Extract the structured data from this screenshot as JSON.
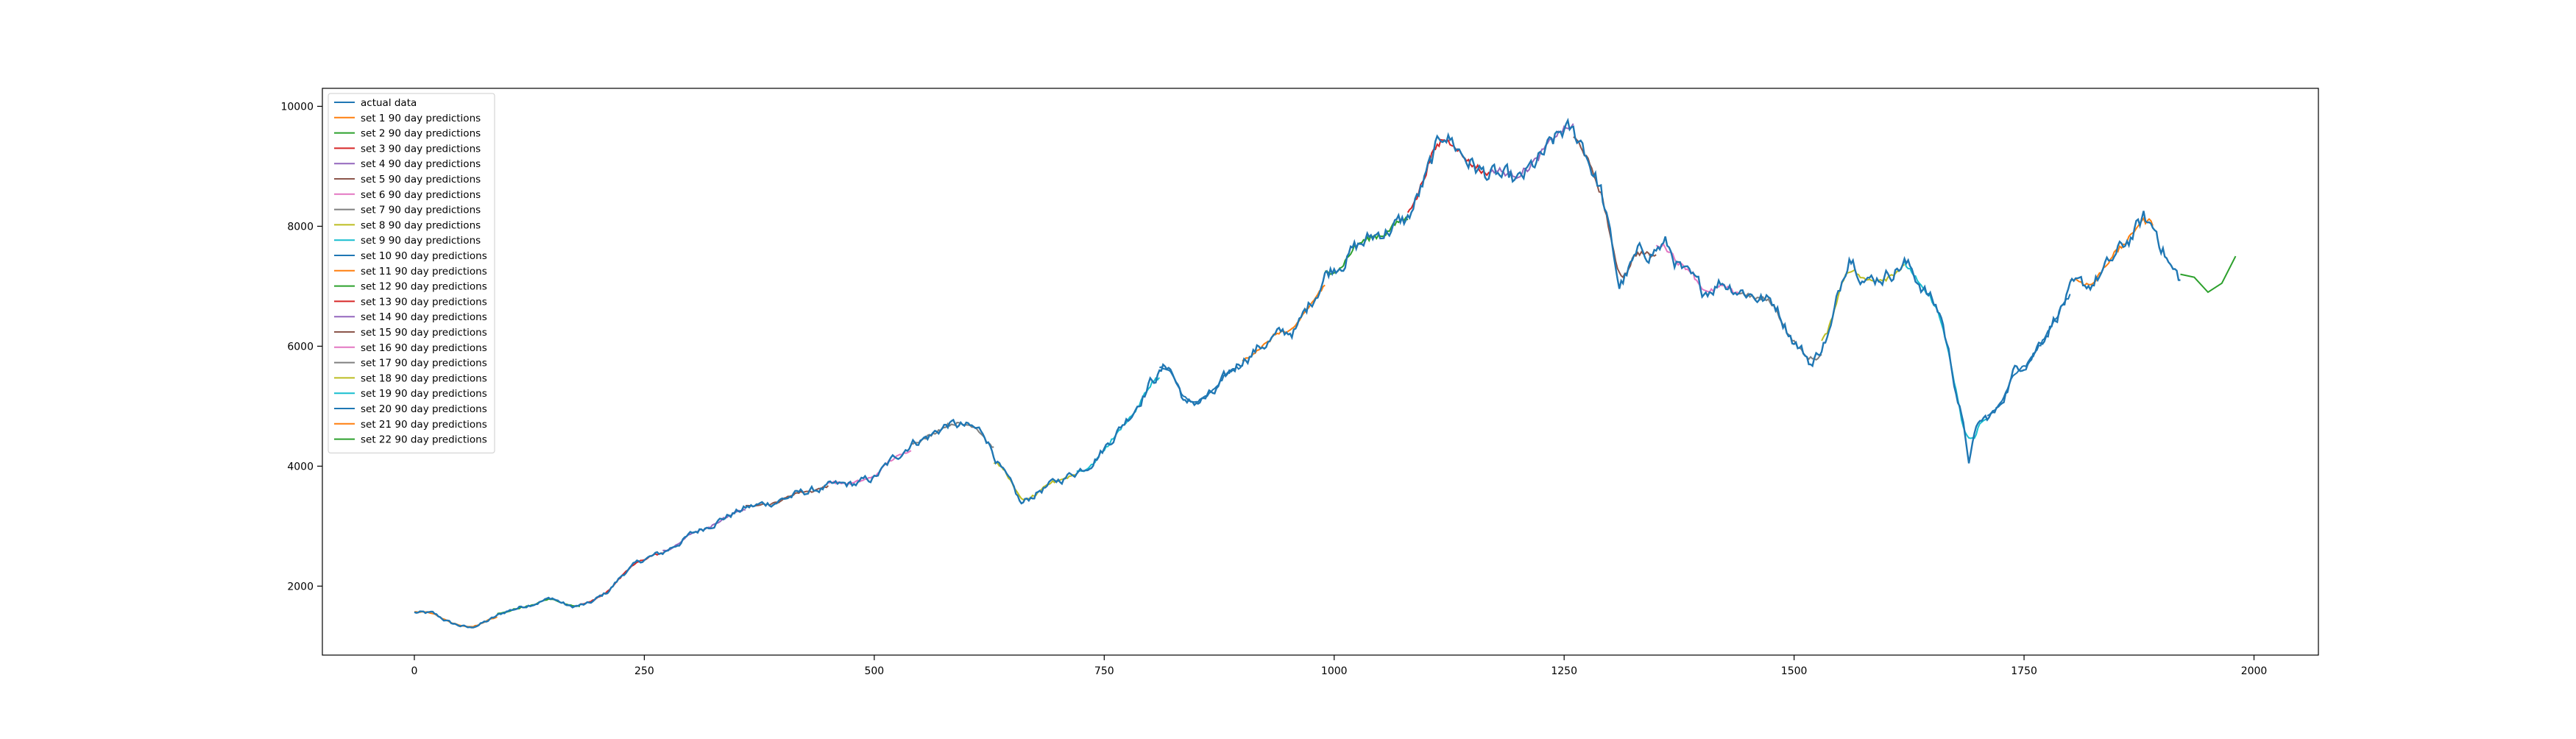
{
  "chart_data": {
    "type": "line",
    "title": "",
    "xlabel": "",
    "ylabel": "",
    "xlim": [
      -100,
      2070
    ],
    "ylim": [
      850,
      10300
    ],
    "xticks": [
      0,
      250,
      500,
      750,
      1000,
      1250,
      1500,
      1750,
      2000
    ],
    "yticks": [
      2000,
      4000,
      6000,
      8000,
      10000
    ],
    "grid": false,
    "legend_position": "upper-left",
    "actual": {
      "name": "actual data",
      "color": "#1f77b4",
      "keypoints": [
        [
          0,
          1560
        ],
        [
          20,
          1540
        ],
        [
          40,
          1380
        ],
        [
          60,
          1300
        ],
        [
          80,
          1420
        ],
        [
          100,
          1580
        ],
        [
          130,
          1720
        ],
        [
          150,
          1800
        ],
        [
          170,
          1650
        ],
        [
          190,
          1700
        ],
        [
          210,
          1900
        ],
        [
          230,
          2250
        ],
        [
          250,
          2450
        ],
        [
          270,
          2550
        ],
        [
          300,
          2850
        ],
        [
          330,
          3100
        ],
        [
          360,
          3300
        ],
        [
          390,
          3400
        ],
        [
          420,
          3550
        ],
        [
          450,
          3650
        ],
        [
          480,
          3700
        ],
        [
          500,
          3800
        ],
        [
          520,
          4100
        ],
        [
          540,
          4400
        ],
        [
          560,
          4500
        ],
        [
          580,
          4700
        ],
        [
          600,
          4650
        ],
        [
          620,
          4550
        ],
        [
          640,
          3900
        ],
        [
          660,
          3350
        ],
        [
          680,
          3600
        ],
        [
          700,
          3750
        ],
        [
          730,
          4000
        ],
        [
          750,
          4300
        ],
        [
          780,
          4900
        ],
        [
          800,
          5400
        ],
        [
          820,
          5700
        ],
        [
          840,
          5000
        ],
        [
          870,
          5200
        ],
        [
          900,
          5800
        ],
        [
          930,
          6100
        ],
        [
          960,
          6300
        ],
        [
          990,
          7200
        ],
        [
          1020,
          7600
        ],
        [
          1050,
          7900
        ],
        [
          1080,
          8100
        ],
        [
          1100,
          8800
        ],
        [
          1120,
          9600
        ],
        [
          1140,
          9200
        ],
        [
          1160,
          8900
        ],
        [
          1180,
          8800
        ],
        [
          1200,
          8700
        ],
        [
          1230,
          9200
        ],
        [
          1250,
          9600
        ],
        [
          1270,
          9400
        ],
        [
          1290,
          8600
        ],
        [
          1310,
          7000
        ],
        [
          1330,
          7500
        ],
        [
          1360,
          7700
        ],
        [
          1380,
          7200
        ],
        [
          1400,
          6900
        ],
        [
          1420,
          7100
        ],
        [
          1450,
          6900
        ],
        [
          1480,
          6700
        ],
        [
          1500,
          6100
        ],
        [
          1520,
          5700
        ],
        [
          1540,
          6300
        ],
        [
          1560,
          7600
        ],
        [
          1580,
          7100
        ],
        [
          1600,
          7200
        ],
        [
          1620,
          7400
        ],
        [
          1640,
          7000
        ],
        [
          1660,
          6500
        ],
        [
          1680,
          5000
        ],
        [
          1690,
          4100
        ],
        [
          1700,
          4700
        ],
        [
          1720,
          4900
        ],
        [
          1740,
          5600
        ],
        [
          1760,
          5900
        ],
        [
          1780,
          6400
        ],
        [
          1800,
          6900
        ],
        [
          1820,
          7000
        ],
        [
          1840,
          7300
        ],
        [
          1860,
          7700
        ],
        [
          1880,
          8100
        ],
        [
          1895,
          7900
        ],
        [
          1910,
          7300
        ],
        [
          1920,
          7100
        ]
      ]
    },
    "predictions": {
      "label_template": "set {n} 90 day predictions",
      "count": 22,
      "horizon_days": 90,
      "colors": [
        "#ff7f0e",
        "#2ca02c",
        "#d62728",
        "#9467bd",
        "#8c564b",
        "#e377c2",
        "#7f7f7f",
        "#bcbd22",
        "#17becf",
        "#1f77b4"
      ],
      "forecast_tail": [
        [
          1920,
          7200
        ],
        [
          1935,
          7150
        ],
        [
          1950,
          6900
        ],
        [
          1965,
          7050
        ],
        [
          1980,
          7500
        ]
      ]
    },
    "legend_entries": [
      "actual data",
      "set 1 90 day predictions",
      "set 2 90 day predictions",
      "set 3 90 day predictions",
      "set 4 90 day predictions",
      "set 5 90 day predictions",
      "set 6 90 day predictions",
      "set 7 90 day predictions",
      "set 8 90 day predictions",
      "set 9 90 day predictions",
      "set 10 90 day predictions",
      "set 11 90 day predictions",
      "set 12 90 day predictions",
      "set 13 90 day predictions",
      "set 14 90 day predictions",
      "set 15 90 day predictions",
      "set 16 90 day predictions",
      "set 17 90 day predictions",
      "set 18 90 day predictions",
      "set 19 90 day predictions",
      "set 20 90 day predictions",
      "set 21 90 day predictions",
      "set 22 90 day predictions"
    ]
  }
}
